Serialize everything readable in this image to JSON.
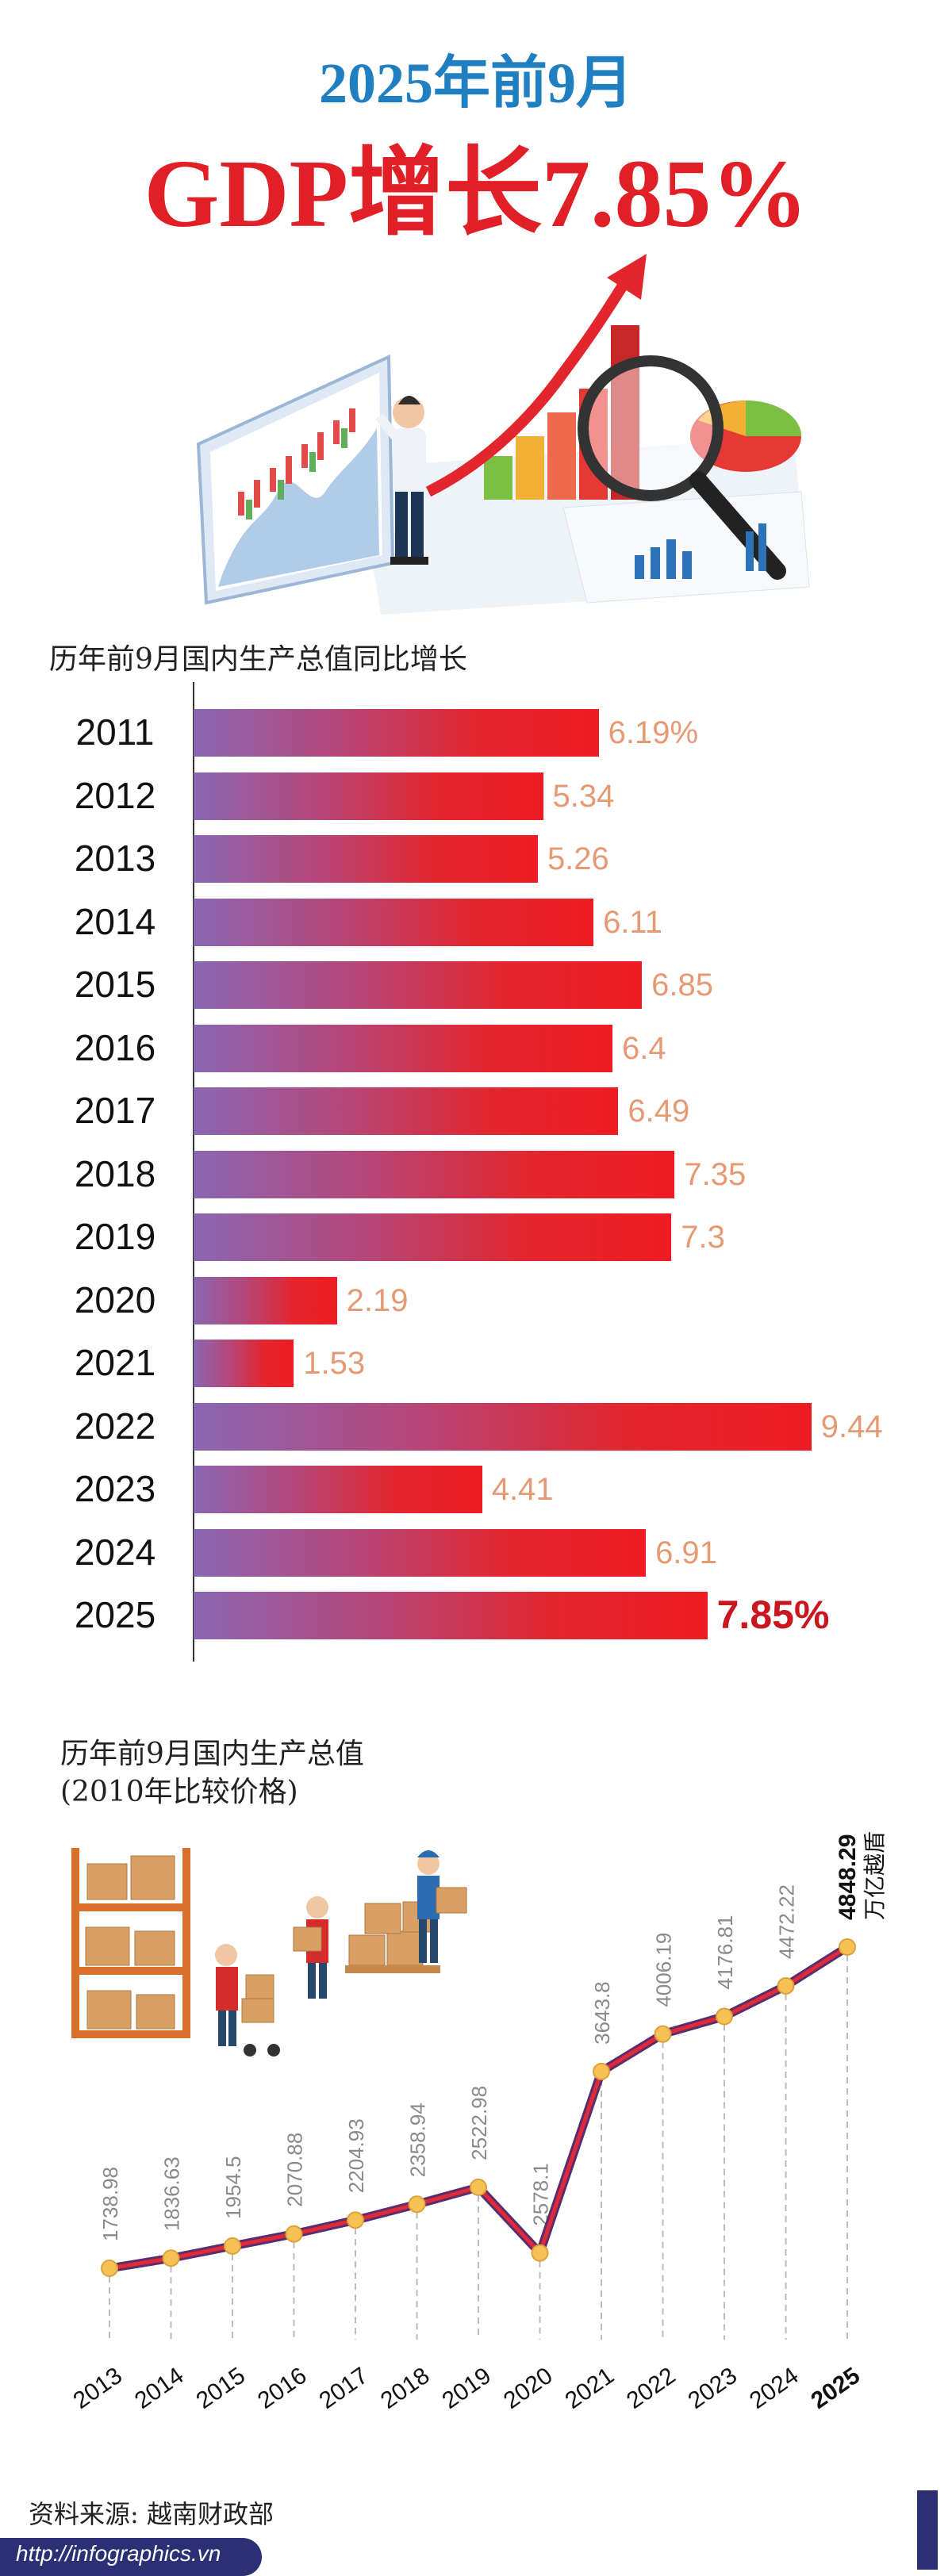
{
  "header": {
    "subtitle": "2025年前9月",
    "title": "GDP增长7.85%"
  },
  "bar_section": {
    "title": "历年前9月国内生产总值同比增长"
  },
  "line_section": {
    "title_line1": "历年前9月国内生产总值",
    "title_line2": "(2010年比较价格)",
    "unit": "万亿越盾"
  },
  "footer": {
    "source": "资料来源: 越南财政部",
    "url": "http://infographics.vn"
  },
  "colors": {
    "title_blue": "#1f7fc0",
    "title_red": "#e01f26",
    "bar_start": "#8a67b2",
    "bar_end": "#ef1c24",
    "value_label": "#e59a74",
    "line": "#a01a4a",
    "marker": "#f7c255"
  },
  "chart_data": [
    {
      "type": "bar",
      "orientation": "horizontal",
      "title": "历年前9月国内生产总值同比增长",
      "categories": [
        "2011",
        "2012",
        "2013",
        "2014",
        "2015",
        "2016",
        "2017",
        "2018",
        "2019",
        "2020",
        "2021",
        "2022",
        "2023",
        "2024",
        "2025"
      ],
      "values": [
        6.19,
        5.34,
        5.26,
        6.11,
        6.85,
        6.4,
        6.49,
        7.35,
        7.3,
        2.19,
        1.53,
        9.44,
        4.41,
        6.91,
        7.85
      ],
      "value_labels": [
        "6.19%",
        "5.34",
        "5.26",
        "6.11",
        "6.85",
        "6.4",
        "6.49",
        "7.35",
        "7.3",
        "2.19",
        "1.53",
        "9.44",
        "4.41",
        "6.91",
        "7.85%"
      ],
      "highlight_index": 14,
      "xlim": [
        0,
        10
      ]
    },
    {
      "type": "line",
      "title": "历年前9月国内生产总值",
      "subtitle": "(2010年比较价格)",
      "categories": [
        "2013",
        "2014",
        "2015",
        "2016",
        "2017",
        "2018",
        "2019",
        "2020",
        "2021",
        "2022",
        "2023",
        "2024",
        "2025"
      ],
      "values": [
        1738.98,
        1836.63,
        1954.5,
        2070.88,
        2204.93,
        2358.94,
        2522.98,
        2578.1,
        3643.8,
        4006.19,
        4176.81,
        4472.22,
        4848.29
      ],
      "value_labels": [
        "1738.98",
        "1836.63",
        "1954.5",
        "2070.88",
        "2204.93",
        "2358.94",
        "2522.98",
        "2578.1",
        "3643.8",
        "4006.19",
        "4176.81",
        "4472.22",
        "4848.29"
      ],
      "unit": "万亿越盾",
      "highlight_index": 12
    }
  ]
}
